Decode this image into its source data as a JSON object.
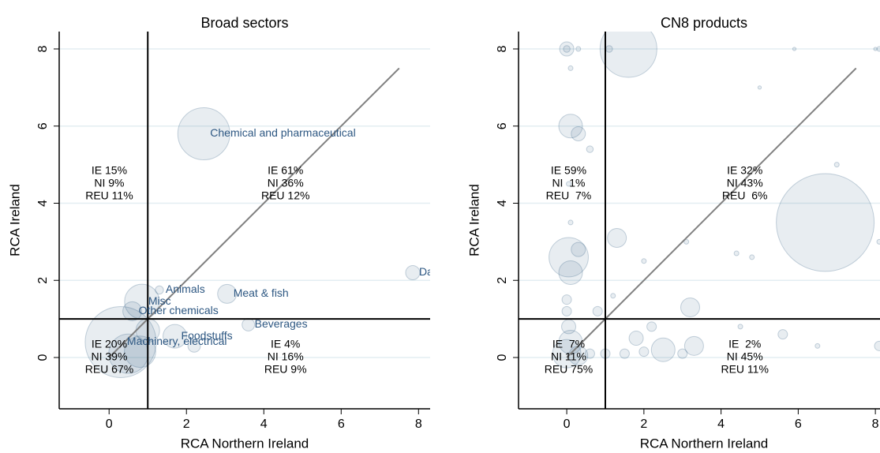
{
  "chart_data": [
    {
      "type": "scatter",
      "title": "Broad sectors",
      "xlabel": "RCA Northern Ireland",
      "ylabel": "RCA Ireland",
      "xlim": [
        -1.29,
        8.3
      ],
      "ylim": [
        -1.33,
        8.45
      ],
      "xticks": [
        0,
        2,
        4,
        6,
        8
      ],
      "yticks": [
        0,
        2,
        4,
        6,
        8
      ],
      "grid": true,
      "vlines": [
        1
      ],
      "hlines": [
        1
      ],
      "diagonal": {
        "x": [
          0,
          7.5
        ],
        "y": [
          0,
          7.5
        ]
      },
      "quadrant_labels": [
        [
          "IE 15%",
          "NI 9%",
          "REU 11%"
        ],
        [
          "IE 61%",
          "NI 36%",
          "REU 12%"
        ],
        [
          "IE 20%",
          "NI 39%",
          "REU 67%"
        ],
        [
          "IE 4%",
          "NI 16%",
          "REU 9%"
        ]
      ],
      "series": [
        {
          "color": "#1f4e79",
          "x": [
            2.45,
            7.85,
            3.05,
            1.3,
            0.85,
            0.6,
            3.6,
            1.7,
            0.3,
            2.2,
            0.8,
            1.0,
            0.5
          ],
          "y": [
            5.8,
            2.2,
            1.65,
            1.75,
            1.45,
            1.2,
            0.85,
            0.55,
            0.4,
            0.3,
            0.15,
            0.7,
            0.1
          ],
          "sizes": [
            121,
            9,
            16,
            3,
            54,
            16,
            7,
            25,
            225,
            7,
            44,
            25,
            69
          ],
          "labels": [
            "Chemical and pharmaceutical",
            "Dairy",
            "Meat & fish",
            "Animals",
            "Misc",
            "Other chemicals",
            "Beverages",
            "Foodstuffs",
            "Machinery, electrical",
            null,
            null,
            null,
            null
          ]
        }
      ]
    },
    {
      "type": "scatter",
      "title": "CN8 products",
      "xlabel": "RCA Northern Ireland",
      "ylabel": "RCA Ireland",
      "xlim": [
        -1.25,
        8.12
      ],
      "ylim": [
        -1.33,
        8.45
      ],
      "xticks": [
        0,
        2,
        4,
        6,
        8
      ],
      "yticks": [
        0,
        2,
        4,
        6,
        8
      ],
      "grid": true,
      "vlines": [
        1
      ],
      "hlines": [
        1
      ],
      "diagonal": {
        "x": [
          0,
          7.5
        ],
        "y": [
          0,
          7.5
        ]
      },
      "quadrant_labels": [
        [
          "IE 59%",
          "NI  1%",
          "REU  7%"
        ],
        [
          "IE 32%",
          "NI 43%",
          "REU  6%"
        ],
        [
          "IE  7%",
          "NI 11%",
          "REU 75%"
        ],
        [
          "IE  2%",
          "NI 45%",
          "REU 11%"
        ]
      ],
      "series": [
        {
          "color": "#1f4e79",
          "x": [
            0,
            0,
            1.6,
            0.3,
            1.1,
            5.9,
            8,
            0.1,
            0.3,
            0.6,
            0.05,
            0.1,
            0.3,
            0,
            0,
            0.05,
            0.1,
            0,
            0.3,
            0.6,
            1,
            1.5,
            2,
            2.5,
            3,
            3.3,
            1.8,
            2.2,
            6.7,
            4.4,
            4.8,
            2,
            3.1,
            1.3,
            0.8,
            1.2,
            3.2,
            4.5,
            5.6,
            8.1,
            8.1,
            8.1,
            0.1,
            0.05,
            0.1,
            6.5,
            7,
            5
          ],
          "y": [
            8,
            8,
            8,
            8,
            8,
            8,
            8,
            6,
            5.8,
            5.4,
            2.6,
            2.2,
            2.8,
            1.5,
            1.2,
            0.8,
            0.4,
            0.1,
            0.05,
            0.1,
            0.1,
            0.1,
            0.15,
            0.2,
            0.1,
            0.3,
            0.5,
            0.8,
            3.5,
            2.7,
            2.6,
            2.5,
            3,
            3.1,
            1.2,
            1.6,
            1.3,
            0.8,
            0.6,
            8,
            3,
            0.3,
            7.5,
            4.5,
            3.5,
            0.3,
            5,
            7
          ],
          "sizes": [
            9,
            2,
            144,
            1,
            2,
            0.5,
            0.5,
            25,
            9,
            2,
            69,
            25,
            9,
            4,
            4,
            9,
            25,
            36,
            16,
            4,
            4,
            4,
            4,
            25,
            4,
            16,
            9,
            4,
            427,
            1,
            1,
            1,
            1,
            16,
            4,
            1,
            16,
            1,
            4,
            1,
            1,
            4,
            1,
            1,
            1,
            1,
            1,
            0.5
          ]
        }
      ]
    }
  ]
}
